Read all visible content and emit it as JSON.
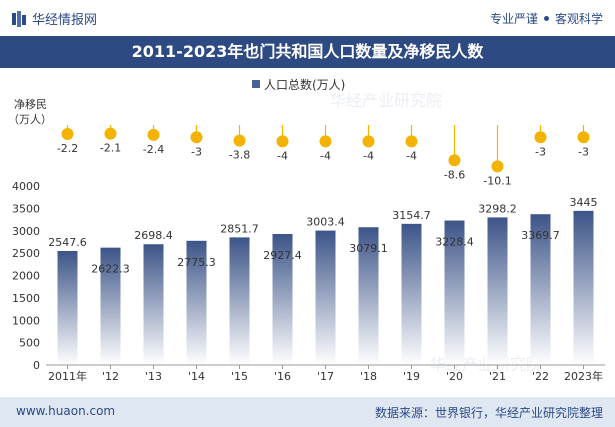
{
  "header": {
    "brand": "华经情报网",
    "slogan_left": "专业严谨",
    "slogan_right": "客观科学"
  },
  "title": "2011-2023年也门共和国人口数量及净移民人数",
  "legend_label": "人口总数(万人)",
  "net_migration_label_line1": "净移民",
  "net_migration_label_line2": "（万人）",
  "watermark": "华经产业研究院",
  "footer": {
    "website": "www.huaon.com",
    "source": "数据来源：世界银行，华经产业研究院整理"
  },
  "colors": {
    "title_bg": "#2e4a82",
    "bar_top": "#3c5488",
    "bar_bottom": "#ffffff",
    "migration_dot": "#f5b301",
    "stem": "#f5b301",
    "footer_bg": "#dfe7f2",
    "brand": "#2b4a86"
  },
  "chart_data": [
    {
      "type": "bar",
      "title": "2011-2023年也门共和国人口数量及净移民人数",
      "series": [
        {
          "name": "人口总数(万人)",
          "values": [
            2547.6,
            2622.3,
            2698.4,
            2775.3,
            2851.7,
            2927.4,
            3003.4,
            3079.1,
            3154.7,
            3228.4,
            3298.2,
            3369.7,
            3445
          ]
        }
      ],
      "categories": [
        "2011年",
        "'12",
        "'13",
        "'14",
        "'15",
        "'16",
        "'17",
        "'18",
        "'19",
        "'20",
        "'21",
        "'22",
        "2023年"
      ],
      "value_labels": [
        "2547.6",
        "2622.3",
        "2698.4",
        "2775.3",
        "2851.7",
        "2927.4",
        "3003.4",
        "3079.1",
        "3154.7",
        "3228.4",
        "3298.2",
        "3369.7",
        "3445"
      ],
      "ylim": [
        0,
        4000
      ],
      "yticks": [
        0,
        500,
        1000,
        1500,
        2000,
        2500,
        3000,
        3500,
        4000
      ],
      "grid": false,
      "legend_position": "top-center"
    },
    {
      "type": "scatter",
      "title": "",
      "series": [
        {
          "name": "净移民",
          "values": [
            -2.2,
            -2.1,
            -2.4,
            -3,
            -3.8,
            -4,
            -4,
            -4,
            -4,
            -8.6,
            -10.1,
            -3,
            -3
          ]
        }
      ],
      "categories": [
        "2011年",
        "'12",
        "'13",
        "'14",
        "'15",
        "'16",
        "'17",
        "'18",
        "'19",
        "'20",
        "'21",
        "'22",
        "2023年"
      ],
      "value_labels": [
        "-2.2",
        "-2.1",
        "-2.4",
        "-3",
        "-3.8",
        "-4",
        "-4",
        "-4",
        "-4",
        "-8.6",
        "-10.1",
        "-3",
        "-3"
      ]
    }
  ]
}
